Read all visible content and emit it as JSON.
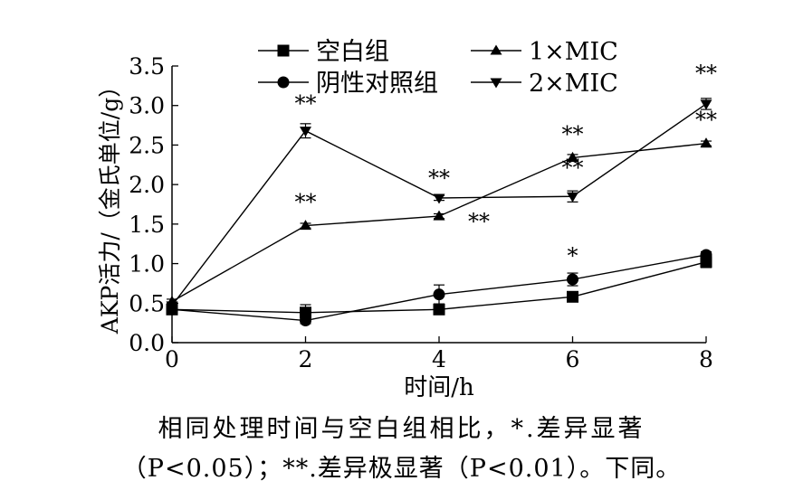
{
  "chart_data": {
    "type": "line",
    "xlabel": "时间/h",
    "ylabel": "AKP活力/（金氏单位/g）",
    "xlim": [
      0,
      8
    ],
    "ylim": [
      0,
      3.5
    ],
    "x_ticks": [
      "0",
      "2",
      "4",
      "6",
      "8"
    ],
    "y_ticks": [
      "0.0",
      "0.5",
      "1.0",
      "1.5",
      "2.0",
      "2.5",
      "3.0",
      "3.5"
    ],
    "legend_position": "top",
    "series": [
      {
        "name": "空白组",
        "marker": "square",
        "x": [
          0,
          2,
          4,
          6,
          8
        ],
        "y": [
          0.42,
          0.38,
          0.42,
          0.58,
          1.02
        ],
        "err": [
          0.04,
          0.1,
          0.04,
          0.04,
          0.07
        ],
        "annotations": [
          "",
          "",
          "",
          "",
          ""
        ]
      },
      {
        "name": "阴性对照组",
        "marker": "circle",
        "x": [
          0,
          2,
          4,
          6,
          8
        ],
        "y": [
          0.42,
          0.28,
          0.61,
          0.8,
          1.11
        ],
        "err": [
          0.04,
          0.04,
          0.12,
          0.08,
          0.04
        ],
        "annotations": [
          "",
          "",
          "",
          "*",
          ""
        ]
      },
      {
        "name": "1×MIC",
        "marker": "triangle-up",
        "x": [
          0,
          2,
          4,
          6,
          8
        ],
        "y": [
          0.52,
          1.48,
          1.6,
          2.34,
          2.52
        ],
        "err": [
          0.03,
          0.03,
          0.03,
          0.04,
          0.03
        ],
        "annotations": [
          "",
          "**",
          "**",
          "**",
          "**"
        ]
      },
      {
        "name": "2×MIC",
        "marker": "triangle-down",
        "x": [
          0,
          2,
          4,
          6,
          8
        ],
        "y": [
          0.47,
          2.68,
          1.83,
          1.85,
          3.02
        ],
        "err": [
          0.03,
          0.09,
          0.03,
          0.07,
          0.07
        ],
        "annotations": [
          "",
          "**",
          "**",
          "**",
          "**"
        ]
      }
    ]
  },
  "caption": {
    "line1": "相同处理时间与空白组相比，*.差异显著",
    "line2": "（P<0.05）；**.差异极显著（P<0.01）。下同。"
  }
}
